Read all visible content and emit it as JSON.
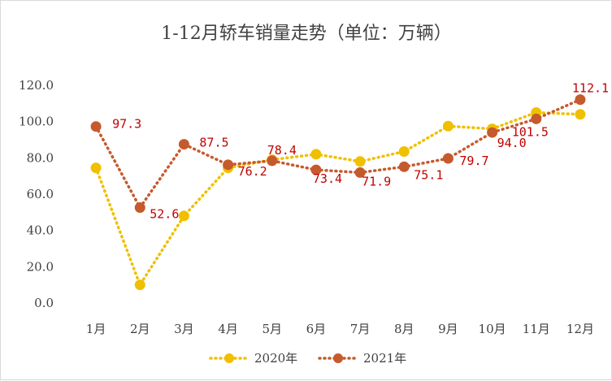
{
  "chart_data": {
    "type": "line",
    "title": "1-12月轿车销量走势（单位：万辆）",
    "categories": [
      "1月",
      "2月",
      "3月",
      "4月",
      "5月",
      "6月",
      "7月",
      "8月",
      "9月",
      "10月",
      "11月",
      "12月"
    ],
    "y_ticks": [
      "0.0",
      "20.0",
      "40.0",
      "60.0",
      "80.0",
      "100.0",
      "120.0"
    ],
    "ylim": [
      0,
      120
    ],
    "grid": false,
    "legend_position": "bottom",
    "series": [
      {
        "name": "2020年",
        "color": "#f0c000",
        "values": [
          74.5,
          10.0,
          48.0,
          74.5,
          79.0,
          82.0,
          78.0,
          83.5,
          97.5,
          96.0,
          105.0,
          104.0
        ],
        "labels": []
      },
      {
        "name": "2021年",
        "color": "#c55a2c",
        "values": [
          97.3,
          52.6,
          87.5,
          76.2,
          78.4,
          73.4,
          71.9,
          75.1,
          79.7,
          94.0,
          101.5,
          112.1
        ],
        "labels": [
          "97.3",
          "52.6",
          "87.5",
          "76.2",
          "78.4",
          "73.4",
          "71.9",
          "75.1",
          "79.7",
          "94.0",
          "101.5",
          "112.1"
        ]
      }
    ]
  }
}
